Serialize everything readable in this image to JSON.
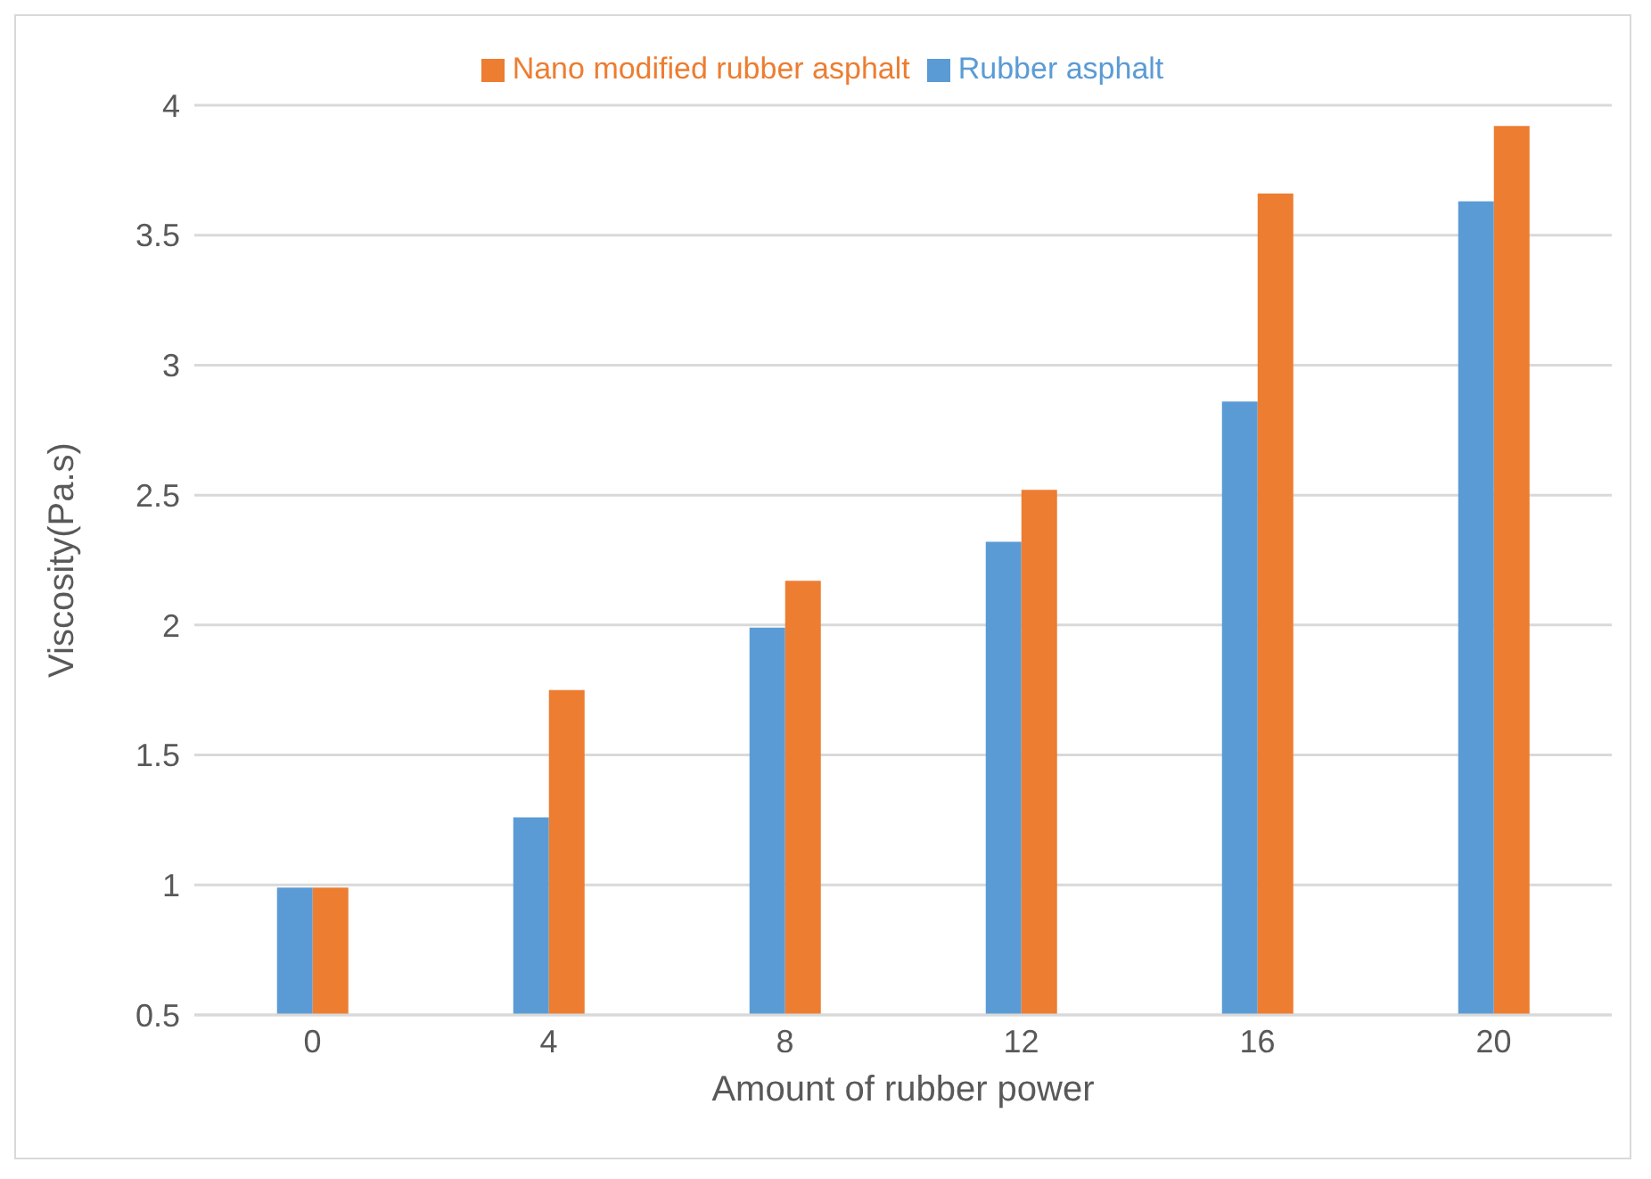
{
  "chart_data": {
    "type": "bar",
    "xlabel": "Amount of rubber power",
    "ylabel": "Viscosity(Pa.s)",
    "categories": [
      "0",
      "4",
      "8",
      "12",
      "16",
      "20"
    ],
    "series": [
      {
        "name": "Rubber asphalt",
        "color": "#5b9bd5",
        "values": [
          0.99,
          1.26,
          1.99,
          2.32,
          2.86,
          3.63
        ]
      },
      {
        "name": "Nano modified rubber asphalt",
        "color": "#ed7d31",
        "values": [
          0.99,
          1.75,
          2.17,
          2.52,
          3.66,
          3.92
        ]
      }
    ],
    "ylim": [
      0.5,
      4
    ],
    "yticks": [
      0.5,
      1,
      1.5,
      2,
      2.5,
      3,
      3.5,
      4
    ],
    "grid": "y",
    "legend": "top"
  }
}
